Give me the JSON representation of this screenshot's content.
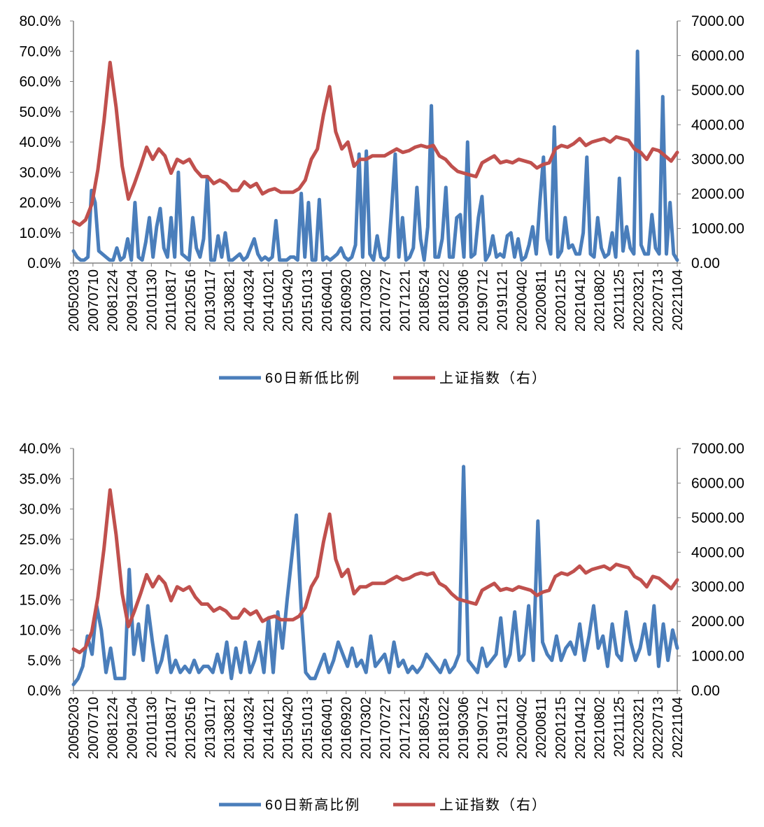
{
  "chart_data": [
    {
      "type": "line",
      "title": "",
      "xlabel": "",
      "ylabel": "",
      "x_ticks": [
        "20050203",
        "20070710",
        "20081224",
        "20091204",
        "20101130",
        "20110817",
        "20120516",
        "20130117",
        "20130821",
        "20140324",
        "20141021",
        "20150420",
        "20151013",
        "20160401",
        "20160920",
        "20170302",
        "20170727",
        "20171221",
        "20180524",
        "20181022",
        "20190306",
        "20190712",
        "20191121",
        "20200402",
        "20200811",
        "20201215",
        "20210412",
        "20210802",
        "20211125",
        "20220321",
        "20220713",
        "20221104"
      ],
      "y_left_ticks": [
        "0.0%",
        "10.0%",
        "20.0%",
        "30.0%",
        "40.0%",
        "50.0%",
        "60.0%",
        "70.0%",
        "80.0%"
      ],
      "y_right_ticks": [
        "0.00",
        "1000.00",
        "2000.00",
        "3000.00",
        "4000.00",
        "5000.00",
        "6000.00",
        "7000.00"
      ],
      "ylim_left": [
        0,
        80
      ],
      "ylim_right": [
        0,
        7000
      ],
      "legend_position": "bottom",
      "series": [
        {
          "name": "60日新低比例",
          "axis": "left",
          "unit": "percent",
          "color": "#4a7ebb",
          "values": [
            4,
            2,
            1,
            1,
            2,
            24,
            20,
            4,
            3,
            2,
            1,
            1,
            5,
            1,
            2,
            8,
            1,
            20,
            2,
            1,
            7,
            15,
            2,
            12,
            18,
            5,
            2,
            15,
            2,
            30,
            3,
            2,
            1,
            15,
            5,
            2,
            8,
            28,
            1,
            1,
            9,
            2,
            10,
            1,
            1,
            2,
            3,
            1,
            2,
            5,
            8,
            3,
            1,
            2,
            1,
            2,
            14,
            1,
            1,
            1,
            2,
            2,
            1,
            23,
            2,
            20,
            1,
            1,
            21,
            1,
            2,
            1,
            2,
            3,
            5,
            2,
            1,
            2,
            6,
            36,
            2,
            37,
            3,
            1,
            9,
            2,
            1,
            2,
            18,
            36,
            2,
            15,
            1,
            2,
            5,
            25,
            8,
            1,
            12,
            52,
            2,
            2,
            8,
            25,
            2,
            2,
            15,
            16,
            2,
            40,
            2,
            3,
            15,
            22,
            1,
            3,
            9,
            2,
            3,
            2,
            9,
            10,
            2,
            8,
            1,
            2,
            6,
            12,
            3,
            20,
            35,
            8,
            3,
            45,
            2,
            4,
            15,
            5,
            6,
            3,
            3,
            10,
            35,
            3,
            2,
            15,
            5,
            2,
            3,
            10,
            2,
            28,
            4,
            12,
            5,
            3,
            70,
            6,
            3,
            3,
            16,
            5,
            3,
            55,
            3,
            20,
            3,
            1
          ]
        },
        {
          "name": "上证指数（右）",
          "axis": "right",
          "unit": "index",
          "color": "#c0504d",
          "values": [
            1200,
            1100,
            1250,
            1700,
            2700,
            4100,
            5800,
            4500,
            2800,
            1850,
            2300,
            2800,
            3350,
            3000,
            3300,
            3100,
            2600,
            3000,
            2900,
            3000,
            2700,
            2500,
            2500,
            2300,
            2400,
            2300,
            2100,
            2100,
            2350,
            2200,
            2300,
            2000,
            2100,
            2150,
            2050,
            2050,
            2050,
            2150,
            2400,
            3000,
            3300,
            4300,
            5100,
            3800,
            3300,
            3500,
            2800,
            3000,
            3000,
            3100,
            3100,
            3100,
            3200,
            3300,
            3200,
            3250,
            3350,
            3400,
            3350,
            3400,
            3100,
            3000,
            2800,
            2650,
            2600,
            2550,
            2500,
            2900,
            3000,
            3100,
            2900,
            2950,
            2900,
            3000,
            2950,
            2900,
            2750,
            2850,
            2900,
            3300,
            3400,
            3350,
            3450,
            3600,
            3400,
            3500,
            3550,
            3600,
            3500,
            3650,
            3600,
            3550,
            3300,
            3200,
            3000,
            3300,
            3250,
            3100,
            2950,
            3200
          ]
        }
      ]
    },
    {
      "type": "line",
      "title": "",
      "xlabel": "",
      "ylabel": "",
      "x_ticks": [
        "20050203",
        "20070710",
        "20081224",
        "20091204",
        "20101130",
        "20110817",
        "20120516",
        "20130117",
        "20130821",
        "20140324",
        "20141021",
        "20150420",
        "20151013",
        "20160401",
        "20160920",
        "20170302",
        "20170727",
        "20171221",
        "20180524",
        "20181022",
        "20190306",
        "20190712",
        "20191121",
        "20200402",
        "20200811",
        "20201215",
        "20210412",
        "20210802",
        "20211125",
        "20220321",
        "20220713",
        "20221104"
      ],
      "y_left_ticks": [
        "0.0%",
        "5.0%",
        "10.0%",
        "15.0%",
        "20.0%",
        "25.0%",
        "30.0%",
        "35.0%",
        "40.0%"
      ],
      "y_right_ticks": [
        "0.00",
        "1000.00",
        "2000.00",
        "3000.00",
        "4000.00",
        "5000.00",
        "6000.00",
        "7000.00"
      ],
      "ylim_left": [
        0,
        40
      ],
      "ylim_right": [
        0,
        7000
      ],
      "legend_position": "bottom",
      "series": [
        {
          "name": "60日新高比例",
          "axis": "left",
          "unit": "percent",
          "color": "#4a7ebb",
          "values": [
            1,
            2,
            4,
            9,
            6,
            14,
            10,
            3,
            7,
            2,
            2,
            2,
            20,
            6,
            11,
            5,
            14,
            8,
            3,
            5,
            9,
            3,
            5,
            3,
            4,
            3,
            5,
            3,
            4,
            4,
            3,
            6,
            3,
            8,
            2,
            7,
            3,
            8,
            3,
            5,
            8,
            3,
            12,
            3,
            13,
            7,
            15,
            22,
            29,
            14,
            3,
            2,
            2,
            4,
            6,
            3,
            5,
            8,
            6,
            4,
            7,
            4,
            5,
            3,
            9,
            4,
            5,
            6,
            3,
            8,
            4,
            5,
            3,
            4,
            3,
            4,
            6,
            5,
            4,
            3,
            5,
            3,
            4,
            6,
            37,
            5,
            4,
            3,
            7,
            4,
            5,
            6,
            12,
            4,
            6,
            13,
            5,
            6,
            14,
            5,
            28,
            8,
            6,
            5,
            9,
            5,
            7,
            8,
            6,
            11,
            5,
            9,
            14,
            7,
            9,
            4,
            11,
            6,
            5,
            13,
            8,
            5,
            7,
            11,
            6,
            14,
            4,
            11,
            5,
            10,
            7
          ]
        },
        {
          "name": "上证指数（右）",
          "axis": "right",
          "unit": "index",
          "color": "#c0504d",
          "values": [
            1200,
            1100,
            1250,
            1700,
            2700,
            4100,
            5800,
            4500,
            2800,
            1850,
            2300,
            2800,
            3350,
            3000,
            3300,
            3100,
            2600,
            3000,
            2900,
            3000,
            2700,
            2500,
            2500,
            2300,
            2400,
            2300,
            2100,
            2100,
            2350,
            2200,
            2300,
            2000,
            2100,
            2150,
            2050,
            2050,
            2050,
            2150,
            2400,
            3000,
            3300,
            4300,
            5100,
            3800,
            3300,
            3500,
            2800,
            3000,
            3000,
            3100,
            3100,
            3100,
            3200,
            3300,
            3200,
            3250,
            3350,
            3400,
            3350,
            3400,
            3100,
            3000,
            2800,
            2650,
            2600,
            2550,
            2500,
            2900,
            3000,
            3100,
            2900,
            2950,
            2900,
            3000,
            2950,
            2900,
            2750,
            2850,
            2900,
            3300,
            3400,
            3350,
            3450,
            3600,
            3400,
            3500,
            3550,
            3600,
            3500,
            3650,
            3600,
            3550,
            3300,
            3200,
            3000,
            3300,
            3250,
            3100,
            2950,
            3200
          ]
        }
      ]
    }
  ]
}
